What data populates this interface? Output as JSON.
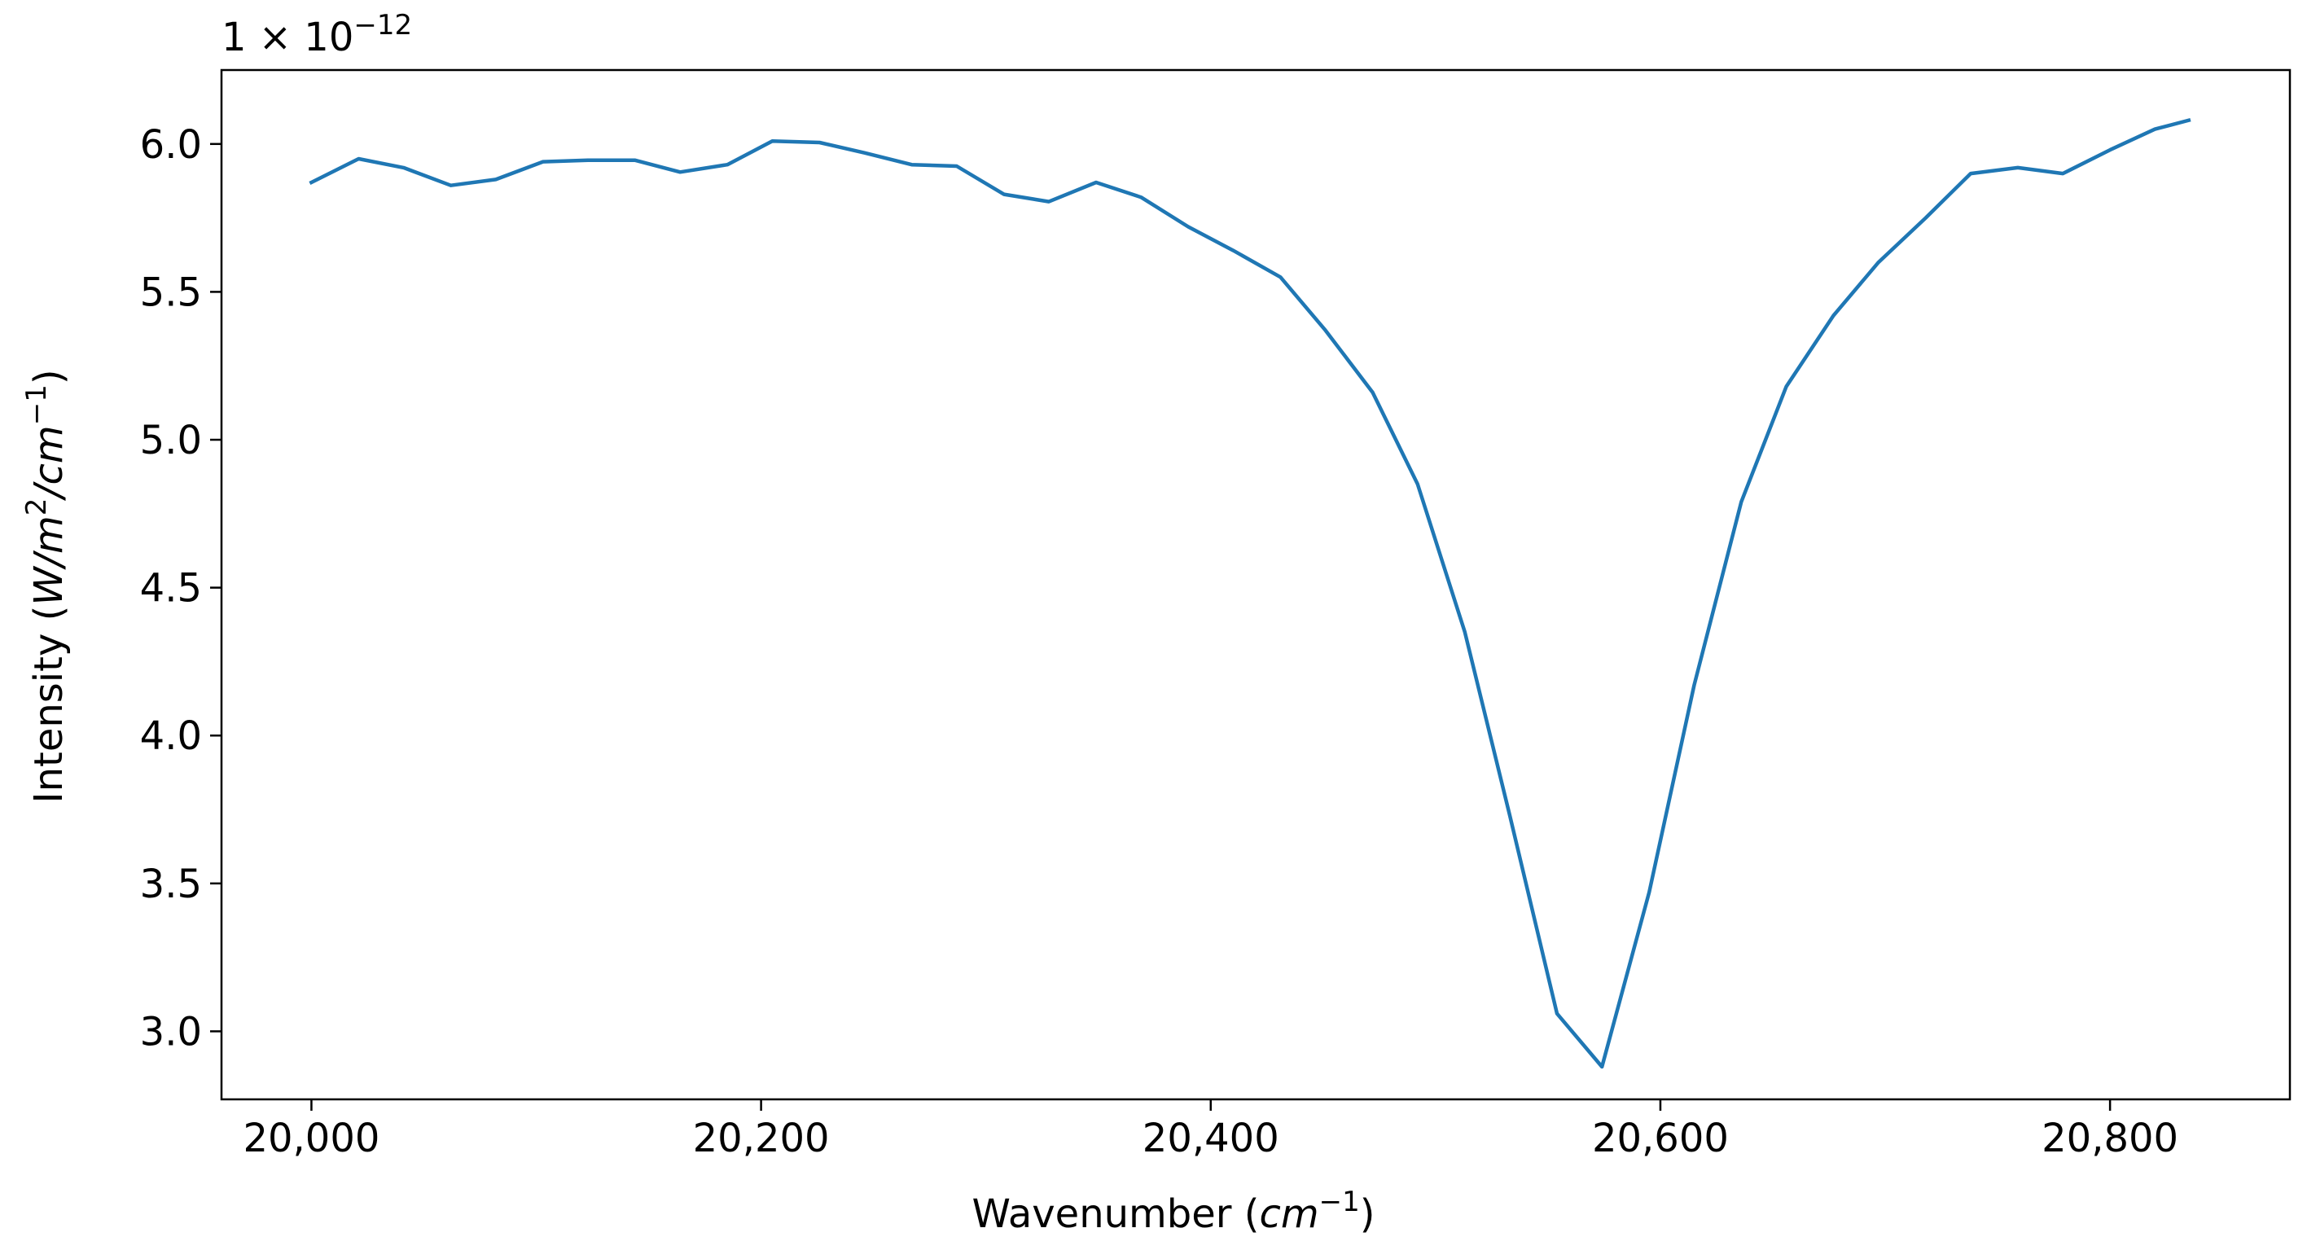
{
  "chart_data": {
    "type": "line",
    "title": "",
    "xlabel_text": "Wavenumber (",
    "xlabel_unit": "cm",
    "xlabel_exp": "−1",
    "xlabel_close": ")",
    "ylabel_text": "Intensity (",
    "ylabel_unit_a": "W/m",
    "ylabel_exp_a": "2",
    "ylabel_unit_b": "/cm",
    "ylabel_exp_b": "−1",
    "ylabel_close": ")",
    "offset_base": "1 × 10",
    "offset_exp": "−12",
    "xlim": [
      19960,
      20880
    ],
    "ylim": [
      2.77,
      6.25
    ],
    "xticks": [
      20000,
      20200,
      20400,
      20600,
      20800
    ],
    "xtick_labels": [
      "20,000",
      "20,200",
      "20,400",
      "20,600",
      "20,800"
    ],
    "yticks": [
      3.0,
      3.5,
      4.0,
      4.5,
      5.0,
      5.5,
      6.0
    ],
    "ytick_labels": [
      "3.0",
      "3.5",
      "4.0",
      "4.5",
      "5.0",
      "5.5",
      "6.0"
    ],
    "grid": false,
    "series": [
      {
        "color": "#1f77b4",
        "x": [
          20000,
          20021,
          20041,
          20062,
          20082,
          20103,
          20123,
          20144,
          20164,
          20185,
          20205,
          20226,
          20246,
          20267,
          20287,
          20308,
          20328,
          20349,
          20369,
          20390,
          20410,
          20431,
          20451,
          20472,
          20492,
          20513,
          20533,
          20554,
          20574,
          20595,
          20615,
          20636,
          20656,
          20677,
          20697,
          20718,
          20738,
          20759,
          20779,
          20800,
          20820,
          20835
        ],
        "y": [
          5.87,
          5.95,
          5.92,
          5.86,
          5.88,
          5.94,
          5.945,
          5.945,
          5.905,
          5.93,
          6.01,
          6.005,
          5.97,
          5.93,
          5.925,
          5.83,
          5.805,
          5.87,
          5.82,
          5.72,
          5.64,
          5.55,
          5.37,
          5.16,
          4.85,
          4.35,
          3.73,
          3.06,
          2.88,
          3.47,
          4.17,
          4.79,
          5.18,
          5.42,
          5.6,
          5.75,
          5.9,
          5.92,
          5.9,
          5.98,
          6.05,
          6.08
        ]
      }
    ]
  }
}
